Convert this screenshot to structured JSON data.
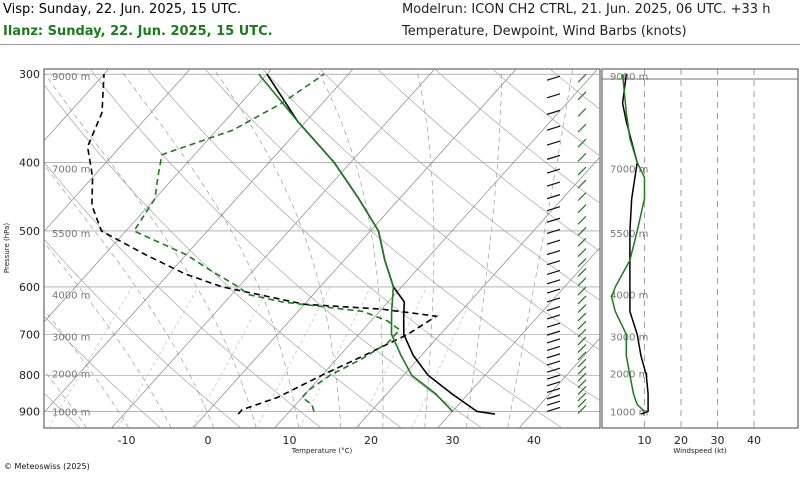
{
  "header": {
    "subtitle_1": "Visp: Sunday, 22. Jun. 2025, 15 UTC.",
    "subtitle_2": "Ilanz: Sunday, 22. Jun. 2025, 15 UTC.",
    "model_run": "Modelrun: ICON CH2 CTRL, 21. Jun. 2025, 06 UTC. +33 h",
    "parameters": "Temperature, Dewpoint, Wind Barbs (knots)"
  },
  "footer": {
    "copyright": "© Meteoswiss (2025)"
  },
  "colors": {
    "series_1": "#000000",
    "series_2": "#1e7a1e",
    "grid": "#888888",
    "background": "#ffffff"
  },
  "chart_data": [
    {
      "type": "line",
      "chart_kind": "skew-t log-p diagram",
      "xlabel": "Temperature (°C)",
      "ylabel": "Pressure (hPa)",
      "x_ticks": [
        -10,
        0,
        10,
        20,
        30,
        40
      ],
      "xlim": [
        -20,
        45
      ],
      "y_ticks": [
        300,
        400,
        500,
        600,
        700,
        800,
        900
      ],
      "ylim": [
        950,
        290
      ],
      "y_scale": "log",
      "altitude_labels": [
        {
          "p": 900,
          "label": "1000 m"
        },
        {
          "p": 795,
          "label": "2000 m"
        },
        {
          "p": 705,
          "label": "3000 m"
        },
        {
          "p": 615,
          "label": "4000 m"
        },
        {
          "p": 503,
          "label": "5500 m"
        },
        {
          "p": 408,
          "label": "7000 m"
        },
        {
          "p": 302,
          "label": "9000 m"
        }
      ],
      "grid": true,
      "series": [
        {
          "name": "Visp",
          "temperature": [
            [
              908,
              35.5
            ],
            [
              900,
              33
            ],
            [
              850,
              28
            ],
            [
              800,
              23
            ],
            [
              750,
              19
            ],
            [
              700,
              15.5
            ],
            [
              660,
              13.5
            ],
            [
              630,
              12
            ],
            [
              600,
              9
            ],
            [
              550,
              5
            ],
            [
              500,
              1
            ],
            [
              450,
              -5
            ],
            [
              400,
              -12
            ],
            [
              350,
              -21
            ],
            [
              300,
              -30
            ]
          ],
          "dewpoint": [
            [
              908,
              4
            ],
            [
              895,
              4
            ],
            [
              860,
              7
            ],
            [
              800,
              10
            ],
            [
              750,
              13
            ],
            [
              700,
              16
            ],
            [
              660,
              17.5
            ],
            [
              645,
              10
            ],
            [
              635,
              0
            ],
            [
              620,
              -5
            ],
            [
              600,
              -12
            ],
            [
              575,
              -18
            ],
            [
              540,
              -25
            ],
            [
              500,
              -33
            ],
            [
              460,
              -37
            ],
            [
              420,
              -40
            ],
            [
              380,
              -44
            ],
            [
              340,
              -46
            ],
            [
              300,
              -50
            ]
          ]
        },
        {
          "name": "Ilanz",
          "temperature": [
            [
              900,
              30
            ],
            [
              850,
              26
            ],
            [
              800,
              21
            ],
            [
              750,
              17.5
            ],
            [
              700,
              14
            ],
            [
              650,
              11.5
            ],
            [
              600,
              9
            ],
            [
              550,
              5
            ],
            [
              500,
              1
            ],
            [
              450,
              -5
            ],
            [
              400,
              -12
            ],
            [
              350,
              -21
            ],
            [
              300,
              -31
            ]
          ],
          "dewpoint": [
            [
              900,
              13
            ],
            [
              880,
              12
            ],
            [
              860,
              10
            ],
            [
              840,
              10
            ],
            [
              800,
              11
            ],
            [
              760,
              13
            ],
            [
              720,
              14.5
            ],
            [
              690,
              14.5
            ],
            [
              670,
              12
            ],
            [
              650,
              8
            ],
            [
              630,
              -3
            ],
            [
              615,
              -8
            ],
            [
              600,
              -10
            ],
            [
              570,
              -15
            ],
            [
              540,
              -20
            ],
            [
              500,
              -29
            ],
            [
              450,
              -30
            ],
            [
              420,
              -32
            ],
            [
              390,
              -34
            ],
            [
              360,
              -28
            ],
            [
              330,
              -25
            ],
            [
              300,
              -23
            ]
          ]
        }
      ]
    },
    {
      "type": "line",
      "chart_kind": "wind speed profile",
      "xlabel": "Windspeed (kt)",
      "x_ticks": [
        10,
        20,
        30,
        40
      ],
      "xlim": [
        0,
        50
      ],
      "ylim": [
        950,
        290
      ],
      "altitude_labels": [
        "1000 m",
        "2000 m",
        "3000 m",
        "4000 m",
        "5500 m",
        "7000 m",
        "9000 m"
      ],
      "series": [
        {
          "name": "Visp",
          "points": [
            [
              908,
              9
            ],
            [
              900,
              11
            ],
            [
              880,
              11
            ],
            [
              850,
              11
            ],
            [
              800,
              10.5
            ],
            [
              750,
              9
            ],
            [
              700,
              8
            ],
            [
              650,
              6
            ],
            [
              600,
              6
            ],
            [
              550,
              6
            ],
            [
              500,
              6
            ],
            [
              450,
              6.5
            ],
            [
              400,
              8
            ],
            [
              350,
              5
            ],
            [
              330,
              4
            ],
            [
              300,
              5
            ]
          ]
        },
        {
          "name": "Ilanz",
          "points": [
            [
              900,
              10
            ],
            [
              880,
              8
            ],
            [
              850,
              7
            ],
            [
              800,
              6
            ],
            [
              750,
              5
            ],
            [
              700,
              5
            ],
            [
              650,
              2
            ],
            [
              620,
              1
            ],
            [
              600,
              2
            ],
            [
              550,
              6
            ],
            [
              500,
              8
            ],
            [
              450,
              10
            ],
            [
              420,
              10
            ],
            [
              400,
              8
            ],
            [
              370,
              6
            ],
            [
              340,
              5
            ],
            [
              300,
              4
            ]
          ]
        }
      ]
    }
  ]
}
